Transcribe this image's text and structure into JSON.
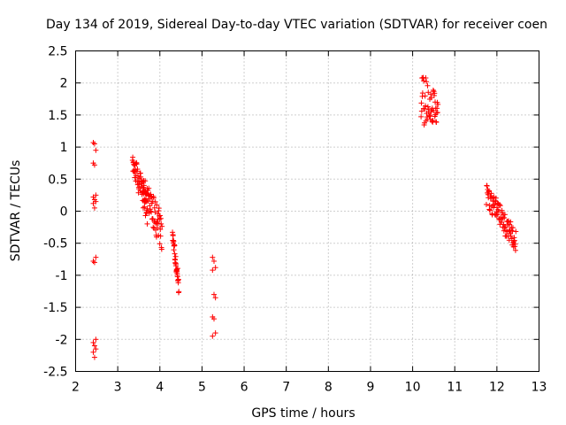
{
  "chart_data": {
    "type": "scatter",
    "title": "Day 134 of 2019, Sidereal Day-to-day VTEC variation (SDTVAR) for receiver coen",
    "xlabel": "GPS time / hours",
    "ylabel": "SDTVAR / TECUs",
    "xlim": [
      2,
      13
    ],
    "ylim": [
      -2.5,
      2.5
    ],
    "xticks": [
      2,
      3,
      4,
      5,
      6,
      7,
      8,
      9,
      10,
      11,
      12,
      13
    ],
    "yticks": [
      -2.5,
      -2,
      -1.5,
      -1,
      -0.5,
      0,
      0.5,
      1,
      1.5,
      2,
      2.5
    ],
    "xtick_labels": [
      "2",
      "3",
      "4",
      "5",
      "6",
      "7",
      "8",
      "9",
      "10",
      "11",
      "12",
      "13"
    ],
    "ytick_labels": [
      "-2.5",
      "-2",
      "-1.5",
      "-1",
      "-0.5",
      "0",
      "0.5",
      "1",
      "1.5",
      "2",
      "2.5"
    ],
    "grid": true,
    "marker": "+",
    "color": "#ff0000",
    "clusters": [
      {
        "x_range": [
          2.42,
          2.48
        ],
        "y_points": [
          1.07,
          1.05,
          0.95,
          0.75,
          0.72,
          0.25,
          0.22,
          0.18,
          0.15,
          0.12,
          0.05,
          -0.72,
          -0.78,
          -0.8,
          -2.0,
          -2.05,
          -2.1,
          -2.15,
          -2.2,
          -2.28
        ]
      },
      {
        "x_range": [
          3.35,
          3.7
        ],
        "y_start": [
          0.95,
          0.6
        ],
        "y_end": [
          0.3,
          -0.2
        ],
        "count": 60
      },
      {
        "x_range": [
          3.6,
          4.05
        ],
        "y_start": [
          0.55,
          0.2
        ],
        "y_end": [
          0.0,
          -0.65
        ],
        "count": 70
      },
      {
        "x_range": [
          4.3,
          4.45
        ],
        "y_start": [
          -0.3,
          -0.45
        ],
        "y_end": [
          -1.0,
          -1.3
        ],
        "count": 35
      },
      {
        "x_range": [
          5.25,
          5.32
        ],
        "y_points": [
          -0.72,
          -0.78,
          -0.88,
          -0.92,
          -1.3,
          -1.35,
          -1.65,
          -1.68,
          -1.9,
          -1.95
        ]
      },
      {
        "x_range": [
          10.2,
          10.6
        ],
        "y_start": [
          1.25,
          2.2
        ],
        "y_end": [
          1.4,
          1.8
        ],
        "count": 55
      },
      {
        "x_range": [
          11.75,
          12.45
        ],
        "y_start": [
          0.45,
          0.1
        ],
        "y_end": [
          -0.3,
          -0.68
        ],
        "count": 90
      }
    ]
  }
}
